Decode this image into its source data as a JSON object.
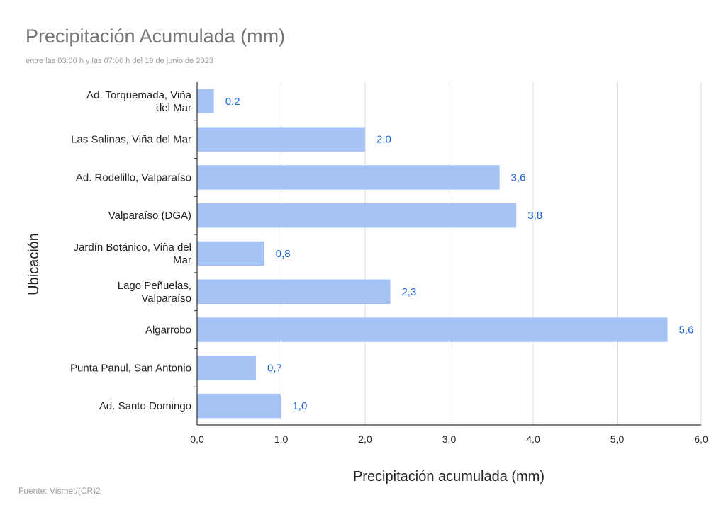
{
  "header": {
    "title": "Precipitación Acumulada (mm)",
    "subtitle": "entre las 03:00 h y las 07:00 h del 19 de junio de 2023"
  },
  "footer": {
    "source": "Fuente: Vismet/(CR)2"
  },
  "chart_data": {
    "type": "bar",
    "orientation": "horizontal",
    "title": "Precipitación Acumulada (mm)",
    "subtitle": "entre las 03:00 h y las 07:00 h del 19 de junio de 2023",
    "xlabel": "Precipitación acumulada (mm)",
    "ylabel": "Ubicación",
    "categories": [
      [
        "Ad. Torquemada, Viña",
        "del Mar"
      ],
      [
        "Las Salinas, Viña del Mar"
      ],
      [
        "Ad. Rodelillo, Valparaíso"
      ],
      [
        "Valparaíso (DGA)"
      ],
      [
        "Jardín Botánico, Viña del",
        "Mar"
      ],
      [
        "Lago Peñuelas,",
        "Valparaíso"
      ],
      [
        "Algarrobo"
      ],
      [
        "Punta Panul, San Antonio"
      ],
      [
        "Ad. Santo Domingo"
      ]
    ],
    "values": [
      0.2,
      2.0,
      3.6,
      3.8,
      0.8,
      2.3,
      5.6,
      0.7,
      1.0
    ],
    "data_labels": [
      "0,2",
      "2,0",
      "3,6",
      "3,8",
      "0,8",
      "2,3",
      "5,6",
      "0,7",
      "1,0"
    ],
    "xlim": [
      0,
      6
    ],
    "xticks": [
      0,
      1,
      2,
      3,
      4,
      5,
      6
    ],
    "xtick_labels": [
      "0,0",
      "1,0",
      "2,0",
      "3,0",
      "4,0",
      "5,0",
      "6,0"
    ],
    "grid": true,
    "legend": "none",
    "colors": {
      "bar": "#a4c2f4",
      "data_label": "#1a66d9",
      "grid": "#d9d9d9",
      "axis": "#333333"
    }
  }
}
